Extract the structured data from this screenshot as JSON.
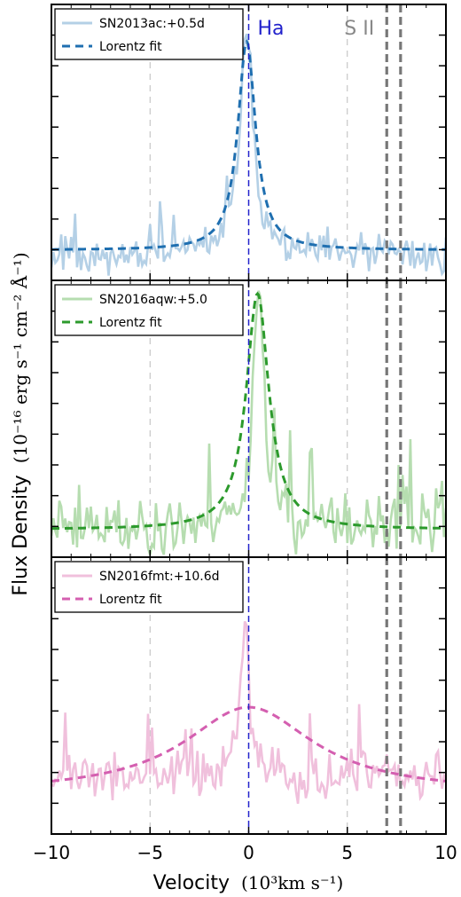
{
  "figure": {
    "ylabel": "Flux Density",
    "ylabel_units": "(10⁻¹⁶ erg s⁻¹ cm⁻² Å⁻¹)",
    "xlabel": "Velocity",
    "xlabel_units": "(10³km s⁻¹)",
    "colors": {
      "halpha_line": "#2222cc",
      "halpha_label": "#2222cc",
      "sii_line": "#777777",
      "sii_label": "#888888",
      "grid": "#bbbbbb"
    }
  },
  "chart_data": [
    {
      "type": "line",
      "panel": "top",
      "xlim": [
        -10,
        10
      ],
      "ylim": [
        0,
        1
      ],
      "x_ticks": [
        -10,
        -5,
        0,
        5,
        10
      ],
      "grid": true,
      "legend_placement": "top-left",
      "annotations": [
        {
          "text": "Ha",
          "x": 0.0,
          "color": "#2222cc"
        },
        {
          "text": "S II",
          "x": 7.0,
          "color": "#888888"
        }
      ],
      "vlines": [
        {
          "name": "Ha",
          "x": 0.0,
          "style": "dashed",
          "color": "#2222cc"
        },
        {
          "name": "S II a",
          "x": 7.0,
          "style": "dashed",
          "color": "#777777"
        },
        {
          "name": "S II b",
          "x": 7.7,
          "style": "dashed",
          "color": "#777777"
        }
      ],
      "series": [
        {
          "name": "SN2013ac:+0.5d",
          "kind": "spectrum",
          "color": "#b4d0e6",
          "seed": 11,
          "amp": 0.11,
          "noise_mean": 0.08,
          "peak": 0.88,
          "peak_x": -0.1,
          "gamma": 0.45
        },
        {
          "name": "Lorentz fit",
          "kind": "fit",
          "color": "#1f6fb0",
          "style": "dashed",
          "baseline": 0.1,
          "peak": 0.88,
          "center": -0.1,
          "gamma": 0.55
        }
      ]
    },
    {
      "type": "line",
      "panel": "middle",
      "xlim": [
        -10,
        10
      ],
      "ylim": [
        0,
        1
      ],
      "x_ticks": [
        -10,
        -5,
        0,
        5,
        10
      ],
      "grid": true,
      "legend_placement": "top-left",
      "vlines": [
        {
          "name": "Ha",
          "x": 0.0,
          "style": "dashed",
          "color": "#2222cc"
        },
        {
          "name": "S II a",
          "x": 7.0,
          "style": "dashed",
          "color": "#777777"
        },
        {
          "name": "S II b",
          "x": 7.7,
          "style": "dashed",
          "color": "#777777"
        }
      ],
      "series": [
        {
          "name": "SN2016aqw:+5.0",
          "kind": "spectrum",
          "color": "#b6ddb0",
          "seed": 23,
          "amp": 0.16,
          "noise_mean": 0.1,
          "peak": 1.0,
          "peak_x": 0.5,
          "gamma": 0.35
        },
        {
          "name": "Lorentz fit",
          "kind": "fit",
          "color": "#2c9a2c",
          "style": "dashed",
          "baseline": 0.09,
          "peak": 0.97,
          "center": 0.45,
          "gamma": 0.7
        }
      ]
    },
    {
      "type": "line",
      "panel": "bottom",
      "xlim": [
        -10,
        10
      ],
      "ylim": [
        0,
        1
      ],
      "x_ticks": [
        -10,
        -5,
        0,
        5,
        10
      ],
      "x_tick_labels": [
        "−10",
        "−5",
        "0",
        "5",
        "10"
      ],
      "grid": true,
      "legend_placement": "top-left",
      "vlines": [
        {
          "name": "Ha",
          "x": 0.0,
          "style": "dashed",
          "color": "#2222cc"
        },
        {
          "name": "S II a",
          "x": 7.0,
          "style": "dashed",
          "color": "#777777"
        },
        {
          "name": "S II b",
          "x": 7.7,
          "style": "dashed",
          "color": "#777777"
        }
      ],
      "series": [
        {
          "name": "SN2016fmt:+10.6d",
          "kind": "spectrum",
          "color": "#f0c0dc",
          "seed": 37,
          "amp": 0.13,
          "noise_mean": 0.2,
          "peak": 0.78,
          "peak_x": -0.2,
          "gamma": 0.25
        },
        {
          "name": "Lorentz fit",
          "kind": "fit",
          "color": "#d45fb0",
          "style": "dashed",
          "baseline": 0.14,
          "peak": 0.46,
          "center": 0.0,
          "gamma": 4.0
        }
      ]
    }
  ]
}
